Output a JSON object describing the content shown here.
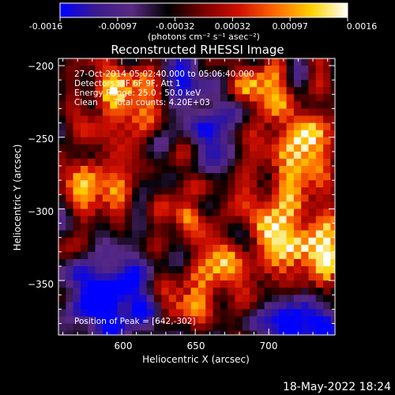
{
  "colorbar": {
    "ticks": [
      "-0.0016",
      "-0.00097",
      "-0.00032",
      "0.00032",
      "0.00097",
      "0.0016"
    ],
    "units": "(photons cm⁻² s⁻¹ asec⁻²)",
    "range": [
      -0.0016,
      0.0016
    ]
  },
  "chart_data": {
    "type": "heatmap",
    "title": "Reconstructed RHESSI Image",
    "xlabel": "Heliocentric X (arcsec)",
    "ylabel": "Heliocentric Y (arcsec)",
    "xlim": [
      557,
      745
    ],
    "ylim": [
      -388,
      -195
    ],
    "x_ticks": [
      "600",
      "650",
      "700"
    ],
    "y_ticks": [
      "−200",
      "−250",
      "−300",
      "−350"
    ],
    "annotations": [
      "27-Oct-2014 05:02:40.000 to 05:06:40.000",
      "Detectors: 3F 6F 9F, Att 1",
      "Energy Range: 25.0 - 50.0 keV",
      "Clean      Total counts: 4.20E+03"
    ],
    "peak_label": "Position of Peak = [642,-302]",
    "peak": {
      "x": 642,
      "y": -302
    },
    "colormap": [
      "#0000ff",
      "#3a1a8f",
      "#5a2a82",
      "#000000",
      "#7a0000",
      "#d01000",
      "#ff6a00",
      "#ffd200",
      "#ffffff"
    ]
  },
  "footer": {
    "date": "18-May-2022 18:24"
  }
}
